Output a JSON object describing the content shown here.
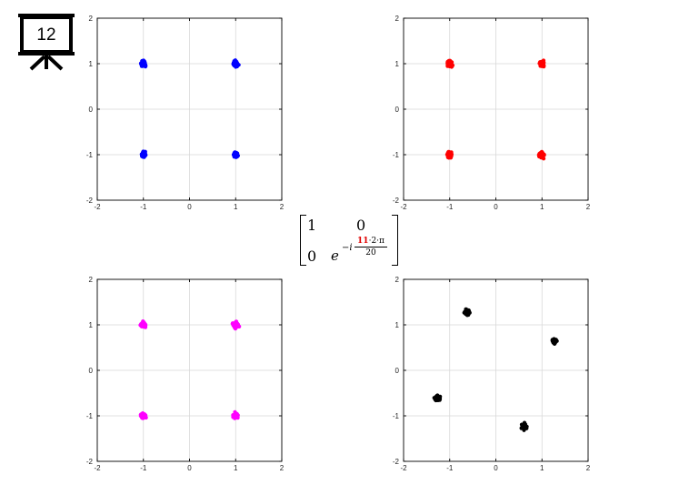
{
  "slide_number": "12",
  "matrix": {
    "r1c1": "1",
    "r1c2": "0",
    "r2c1": "0",
    "r2c2_base": "e",
    "r2c2_exp_prefix": "−i",
    "r2c2_num_highlight": "11",
    "r2c2_num_rest": "·2·π",
    "r2c2_den": "20"
  },
  "colors": {
    "top_left": "#0000ff",
    "top_right": "#ff0000",
    "bottom_left": "#ff00ff",
    "bottom_right": "#000000",
    "highlight": "#e00000"
  },
  "chart_data": [
    {
      "type": "scatter",
      "name": "top-left",
      "color": "#0000ff",
      "xlim": [
        -2,
        2
      ],
      "ylim": [
        -2,
        2
      ],
      "xticks": [
        -2,
        -1,
        0,
        1,
        2
      ],
      "yticks": [
        -2,
        -1,
        0,
        1,
        2
      ],
      "grid": true,
      "clusters": [
        [
          -1,
          1
        ],
        [
          1,
          1
        ],
        [
          -1,
          -1
        ],
        [
          1,
          -1
        ]
      ],
      "spread": 0.06
    },
    {
      "type": "scatter",
      "name": "top-right",
      "color": "#ff0000",
      "xlim": [
        -2,
        2
      ],
      "ylim": [
        -2,
        2
      ],
      "xticks": [
        -2,
        -1,
        0,
        1,
        2
      ],
      "yticks": [
        -2,
        -1,
        0,
        1,
        2
      ],
      "grid": true,
      "clusters": [
        [
          -1,
          1
        ],
        [
          1,
          1
        ],
        [
          -1,
          -1
        ],
        [
          1,
          -1
        ]
      ],
      "spread": 0.06
    },
    {
      "type": "scatter",
      "name": "bottom-left",
      "color": "#ff00ff",
      "xlim": [
        -2,
        2
      ],
      "ylim": [
        -2,
        2
      ],
      "xticks": [
        -2,
        -1,
        0,
        1,
        2
      ],
      "yticks": [
        -2,
        -1,
        0,
        1,
        2
      ],
      "grid": true,
      "clusters": [
        [
          -1,
          1
        ],
        [
          1,
          1
        ],
        [
          -1,
          -1
        ],
        [
          1,
          -1
        ]
      ],
      "spread": 0.06
    },
    {
      "type": "scatter",
      "name": "bottom-right",
      "color": "#000000",
      "xlim": [
        -2,
        2
      ],
      "ylim": [
        -2,
        2
      ],
      "xticks": [
        -2,
        -1,
        0,
        1,
        2
      ],
      "yticks": [
        -2,
        -1,
        0,
        1,
        2
      ],
      "grid": true,
      "clusters": [
        [
          -0.62,
          1.27
        ],
        [
          1.27,
          0.64
        ],
        [
          -1.27,
          -0.62
        ],
        [
          0.62,
          -1.24
        ]
      ],
      "spread": 0.06
    }
  ]
}
